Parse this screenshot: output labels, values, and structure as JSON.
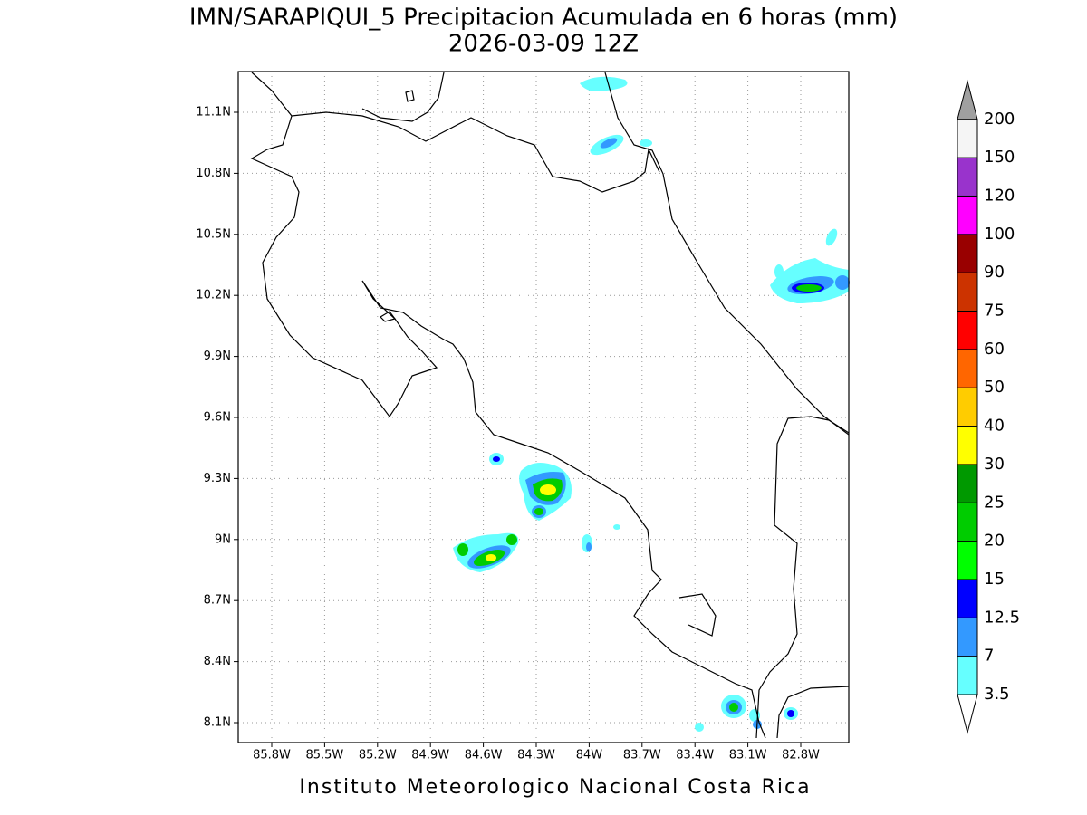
{
  "header": {
    "title": "IMN/SARAPIQUI_5 Precipitacion Acumulada en 6 horas (mm)",
    "subtitle": "2026-03-09 12Z"
  },
  "map": {
    "lat_labels": [
      "11.1N",
      "10.8N",
      "10.5N",
      "10.2N",
      "9.9N",
      "9.6N",
      "9.3N",
      "9N",
      "8.7N",
      "8.4N",
      "8.1N"
    ],
    "lon_labels": [
      "85.8W",
      "85.5W",
      "85.2W",
      "84.9W",
      "84.6W",
      "84.3W",
      "84W",
      "83.7W",
      "83.4W",
      "83.1W",
      "82.8W"
    ]
  },
  "colorbar": {
    "labels": [
      "3.5",
      "7",
      "12.5",
      "15",
      "20",
      "25",
      "30",
      "40",
      "50",
      "60",
      "75",
      "90",
      "100",
      "120",
      "150",
      "200"
    ],
    "colors": [
      "#66ffff",
      "#3399ff",
      "#0000ff",
      "#00ff00",
      "#00cc00",
      "#009900",
      "#ffff00",
      "#ffcc00",
      "#ff6600",
      "#ff0000",
      "#cc3300",
      "#990000",
      "#ff00ff",
      "#9933cc",
      "#f5f5f5"
    ]
  },
  "footer": "Instituto Meteorologico Nacional Costa Rica"
}
